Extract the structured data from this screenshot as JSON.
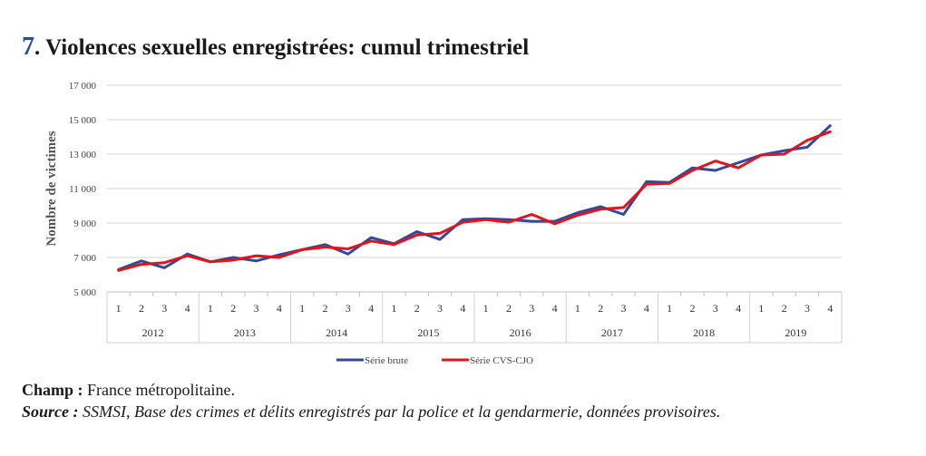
{
  "title": {
    "number": "7",
    "text": "Violences sexuelles enregistrées: cumul trimestriel"
  },
  "chart_data": {
    "type": "line",
    "ylabel": "Nombre de victimes",
    "xlabel": "",
    "ylim": [
      5000,
      17000
    ],
    "yticks": [
      5000,
      7000,
      9000,
      11000,
      13000,
      15000,
      17000
    ],
    "ytick_labels": [
      "5 000",
      "7 000",
      "9 000",
      "11 000",
      "13 000",
      "15 000",
      "17 000"
    ],
    "quarter_labels": [
      "1",
      "2",
      "3",
      "4"
    ],
    "years": [
      "2012",
      "2013",
      "2014",
      "2015",
      "2016",
      "2017",
      "2018",
      "2019"
    ],
    "grid": true,
    "legend_position": "bottom-center",
    "series": [
      {
        "name": "Série brute",
        "color": "#2f4b9a",
        "values": [
          6300,
          6800,
          6400,
          7200,
          6750,
          7000,
          6800,
          7150,
          7450,
          7750,
          7200,
          8150,
          7800,
          8500,
          8050,
          9200,
          9250,
          9200,
          9100,
          9100,
          9600,
          9950,
          9500,
          11400,
          11350,
          12200,
          12050,
          12500,
          12950,
          13200,
          13400,
          14650
        ]
      },
      {
        "name": "Série CVS-CJO",
        "color": "#e1141c",
        "values": [
          6250,
          6600,
          6700,
          7100,
          6750,
          6850,
          7100,
          7000,
          7450,
          7600,
          7500,
          7950,
          7750,
          8300,
          8400,
          9050,
          9200,
          9050,
          9500,
          8950,
          9450,
          9800,
          9900,
          11250,
          11300,
          12050,
          12600,
          12200,
          12950,
          13000,
          13800,
          14300
        ]
      }
    ]
  },
  "notes": {
    "champ_label": "Champ :",
    "champ_text": " France métropolitaine.",
    "source_label": "Source :",
    "source_text": " SSMSI, Base des crimes et délits enregistrés par la police et la gendarmerie, données provisoires."
  }
}
